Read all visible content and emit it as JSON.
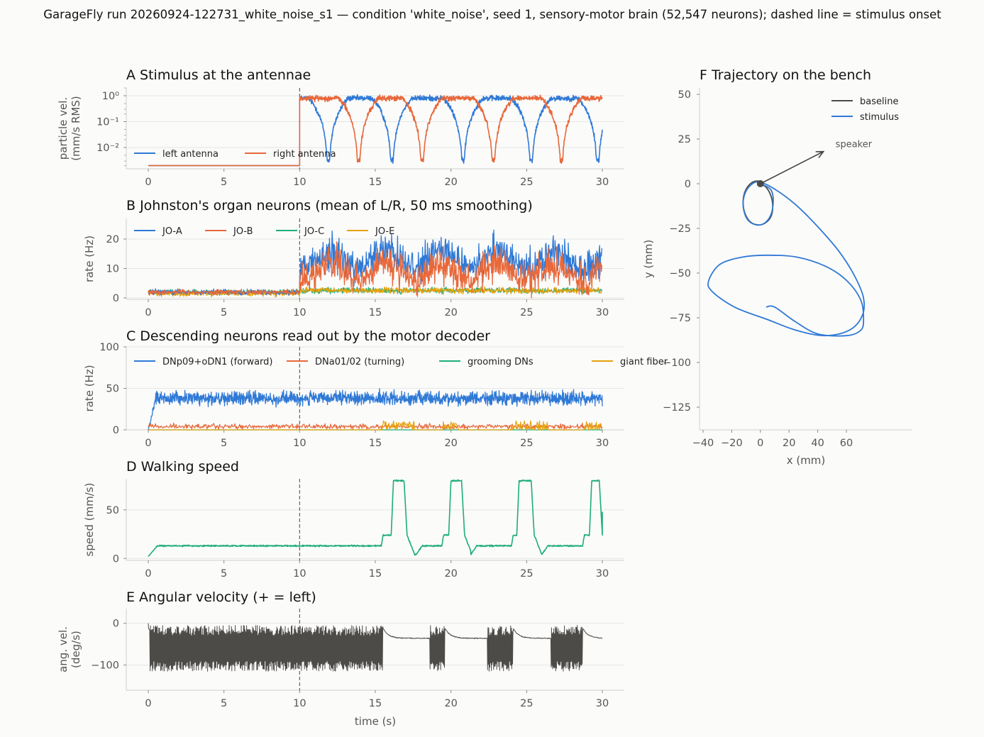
{
  "suptitle": "GarageFly run 20260924-122731_white_noise_s1 — condition 'white_noise', seed 1, sensory-motor brain (52,547 neurons); dashed line = stimulus onset",
  "colors": {
    "blue": "#2f79d6",
    "orange": "#e8683a",
    "green": "#1ead7c",
    "gold": "#e6a20b",
    "dark": "#4d4b48",
    "grid": "#e6e6e6",
    "axis": "#cfcfcf",
    "background": "#fbfbfa"
  },
  "chart_data": [
    {
      "id": "A",
      "type": "line",
      "title": "A  Stimulus at the antennae",
      "ylabel": [
        "particle vel.",
        "(mm/s RMS)"
      ],
      "xlabel": "",
      "yscale": "log",
      "xlim": [
        0,
        30
      ],
      "ylim": [
        0.0015,
        2.0
      ],
      "xticks": [
        0,
        5,
        10,
        15,
        20,
        25,
        30
      ],
      "yticks": [
        {
          "v": 1,
          "label": "10⁰"
        },
        {
          "v": 0.1,
          "label": "10⁻¹"
        },
        {
          "v": 0.01,
          "label": "10⁻²"
        }
      ],
      "onset": 10,
      "grid": true,
      "legend_position": "lower-left",
      "series": [
        {
          "name": "left antenna",
          "color": "#2f79d6",
          "baseline": 0.002,
          "level": 0.8,
          "nulls": [
            11.9,
            16.1,
            20.8,
            25.3,
            29.7
          ]
        },
        {
          "name": "right antenna",
          "color": "#e8683a",
          "baseline": 0.002,
          "level": 0.8,
          "nulls": [
            13.9,
            18.1,
            22.8,
            27.3
          ]
        }
      ]
    },
    {
      "id": "B",
      "type": "line",
      "title": "B  Johnston's organ neurons (mean of L/R, 50 ms smoothing)",
      "ylabel": [
        "rate (Hz)"
      ],
      "xlabel": "",
      "xlim": [
        0,
        30
      ],
      "ylim": [
        -0.5,
        27
      ],
      "xticks": [
        0,
        5,
        10,
        15,
        20,
        25,
        30
      ],
      "yticks": [
        0,
        10,
        20
      ],
      "onset": 10,
      "grid": true,
      "legend_position": "top-left",
      "series": [
        {
          "name": "JO-A",
          "color": "#2f79d6",
          "pre_mean": 2.0,
          "post_mean": 13.0
        },
        {
          "name": "JO-B",
          "color": "#e8683a",
          "pre_mean": 2.0,
          "post_mean": 9.0
        },
        {
          "name": "JO-C",
          "color": "#1ead7c",
          "pre_mean": 2.0,
          "post_mean": 2.5
        },
        {
          "name": "JO-E",
          "color": "#e6a20b",
          "pre_mean": 1.5,
          "post_mean": 2.5
        }
      ]
    },
    {
      "id": "C",
      "type": "line",
      "title": "C  Descending neurons read out by the motor decoder",
      "ylabel": [
        "rate (Hz)"
      ],
      "xlabel": "",
      "xlim": [
        0,
        30
      ],
      "ylim": [
        0,
        100
      ],
      "xticks": [
        0,
        5,
        10,
        15,
        20,
        25,
        30
      ],
      "yticks": [
        0,
        50,
        100
      ],
      "onset": 10,
      "grid": true,
      "legend_position": "top",
      "series": [
        {
          "name": "DNp09+oDN1 (forward)",
          "color": "#2f79d6",
          "mean": 38
        },
        {
          "name": "DNa01/02 (turning)",
          "color": "#e8683a",
          "mean": 4
        },
        {
          "name": "grooming DNs",
          "color": "#1ead7c",
          "mean": 0
        },
        {
          "name": "giant fiber",
          "color": "#e6a20b",
          "bursts": [
            [
              15.4,
              17.6
            ],
            [
              19.4,
              20.6
            ],
            [
              24.0,
              26.5
            ],
            [
              28.8,
              30.0
            ]
          ]
        }
      ]
    },
    {
      "id": "D",
      "type": "line",
      "title": "D  Walking speed",
      "ylabel": [
        "speed (mm/s)"
      ],
      "xlabel": "",
      "xlim": [
        0,
        30
      ],
      "ylim": [
        -2,
        82
      ],
      "xticks": [
        0,
        5,
        10,
        15,
        20,
        25,
        30
      ],
      "yticks": [
        0,
        50
      ],
      "onset": 10,
      "grid": true,
      "series": [
        {
          "name": "",
          "color": "#1ead7c",
          "cruise": 13,
          "max": 80,
          "sprints": [
            [
              15.5,
              16.2,
              16.9,
              17.7
            ],
            [
              19.5,
              20.0,
              20.7,
              21.3
            ],
            [
              24.1,
              24.5,
              25.3,
              26.0
            ],
            [
              28.8,
              29.3,
              29.8,
              30.0
            ]
          ]
        }
      ]
    },
    {
      "id": "E",
      "type": "line",
      "title": "E  Angular velocity (+ = left)",
      "ylabel": [
        "ang. vel.",
        "(deg/s)"
      ],
      "xlabel": "time (s)",
      "xlim": [
        0,
        30
      ],
      "ylim": [
        -160,
        35
      ],
      "xticks": [
        0,
        5,
        10,
        15,
        20,
        25,
        30
      ],
      "yticks": [
        0,
        -100
      ],
      "yticklabels": [
        "0",
        "−100"
      ],
      "onset": 10,
      "grid": true,
      "series": [
        {
          "name": "",
          "color": "#4d4b48",
          "oscillation_center": -60,
          "oscillation_amp": 55,
          "drift": -36,
          "oscillating_spans": [
            [
              0.1,
              15.5
            ],
            [
              18.6,
              19.6
            ],
            [
              22.4,
              24.1
            ],
            [
              26.6,
              28.7
            ]
          ]
        }
      ]
    },
    {
      "id": "F",
      "type": "line",
      "title": "F  Trajectory on the bench",
      "xlabel": "x (mm)",
      "ylabel": [
        "y (mm)"
      ],
      "xlim": [
        -42,
        77
      ],
      "ylim": [
        -138,
        53
      ],
      "xticks": [
        -40,
        -20,
        0,
        20,
        40,
        60
      ],
      "xticklabels": [
        "−40",
        "−20",
        "0",
        "20",
        "40",
        "60"
      ],
      "yticks": [
        50,
        25,
        0,
        -25,
        -50,
        -75,
        -100,
        -125
      ],
      "yticklabels": [
        "50",
        "25",
        "0",
        "−25",
        "−50",
        "−75",
        "−100",
        "−125"
      ],
      "grid": false,
      "legend_position": "top-right",
      "annotation": {
        "text": "speaker",
        "from": [
          0,
          0
        ],
        "to": [
          44,
          18
        ]
      },
      "series": [
        {
          "name": "baseline",
          "color": "#4d4b48",
          "points": [
            [
              0,
              0
            ],
            [
              4,
              -2
            ],
            [
              7,
              -6
            ],
            [
              8.5,
              -11
            ],
            [
              8,
              -17
            ],
            [
              5,
              -21
            ],
            [
              0,
              -23
            ],
            [
              -6,
              -22
            ],
            [
              -10,
              -18
            ],
            [
              -12,
              -12
            ],
            [
              -11,
              -5
            ],
            [
              -7,
              0
            ],
            [
              -2,
              1.5
            ],
            [
              2,
              0
            ]
          ]
        },
        {
          "name": "stimulus",
          "color": "#2f79d6",
          "points": [
            [
              0,
              0
            ],
            [
              7,
              -3
            ],
            [
              9,
              -9
            ],
            [
              7.5,
              -17
            ],
            [
              3,
              -22
            ],
            [
              -3,
              -23
            ],
            [
              -9,
              -20
            ],
            [
              -12,
              -13
            ],
            [
              -11,
              -6
            ],
            [
              -7,
              -1
            ],
            [
              -1,
              1
            ],
            [
              10,
              -3
            ],
            [
              25,
              -12
            ],
            [
              40,
              -24
            ],
            [
              55,
              -38
            ],
            [
              66,
              -52
            ],
            [
              72,
              -64
            ],
            [
              71,
              -74
            ],
            [
              62,
              -82
            ],
            [
              45,
              -85
            ],
            [
              25,
              -82
            ],
            [
              5,
              -76
            ],
            [
              -18,
              -69
            ],
            [
              -34,
              -60
            ],
            [
              -36,
              -54
            ],
            [
              -28,
              -45
            ],
            [
              -12,
              -41
            ],
            [
              5,
              -40
            ],
            [
              25,
              -41
            ],
            [
              45,
              -46
            ],
            [
              60,
              -54
            ],
            [
              70,
              -65
            ],
            [
              72,
              -76
            ],
            [
              70,
              -82
            ],
            [
              60,
              -85
            ],
            [
              40,
              -84
            ],
            [
              24,
              -77
            ],
            [
              10,
              -69
            ],
            [
              4,
              -69
            ]
          ]
        }
      ]
    }
  ]
}
